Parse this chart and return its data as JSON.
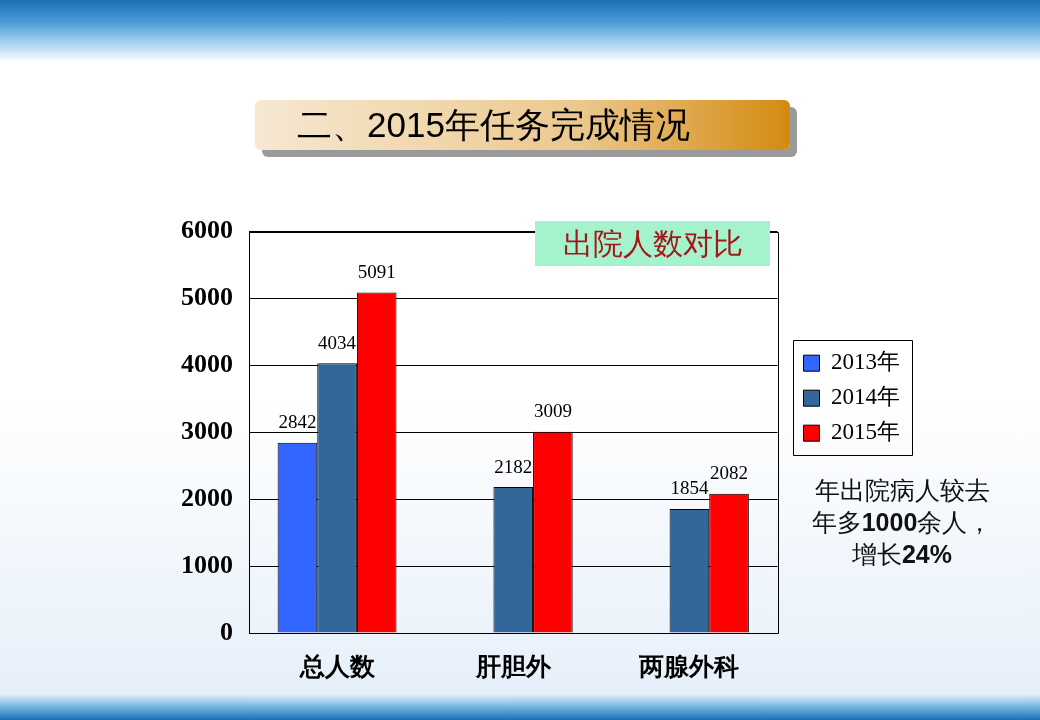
{
  "chart_data": {
    "type": "bar",
    "title": "二、2015年任务完成情况",
    "categories": [
      "总人数",
      "肝胆外",
      "两腺外科"
    ],
    "series": [
      {
        "name": "2013年",
        "color": "#3366ff",
        "values": [
          2842,
          null,
          null
        ]
      },
      {
        "name": "2014年",
        "color": "#336699",
        "values": [
          4034,
          2182,
          1854
        ]
      },
      {
        "name": "2015年",
        "color": "#ff0000",
        "values": [
          5091,
          3009,
          2082
        ]
      }
    ],
    "ylim": [
      0,
      6000
    ],
    "yticks": [
      0,
      1000,
      2000,
      3000,
      4000,
      5000,
      6000
    ],
    "grid": "y",
    "legend": "right",
    "data_labels": true,
    "annotations": [
      "出院人数对比",
      "年出院病人较去年多1000余人，增长24%"
    ]
  }
}
